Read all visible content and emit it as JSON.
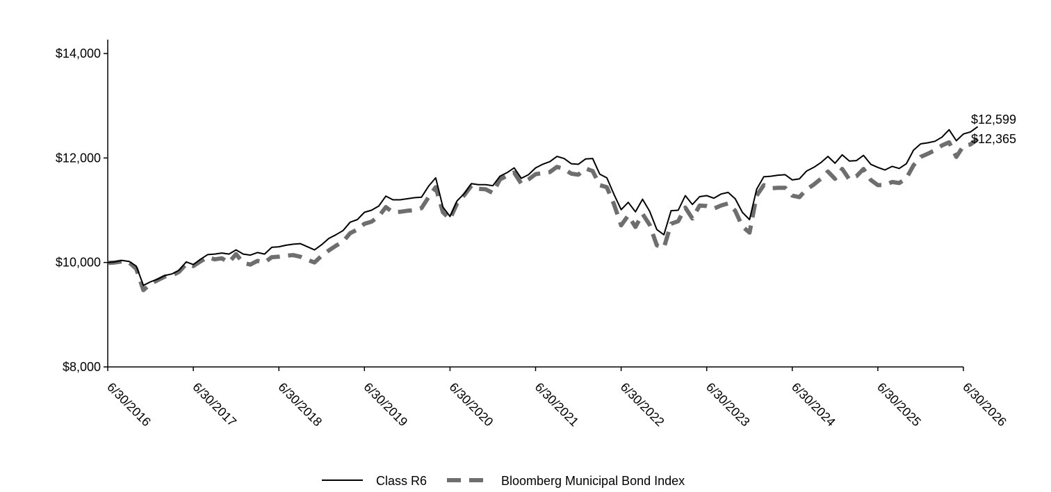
{
  "chart_data": {
    "type": "line",
    "title": "",
    "xlabel": "",
    "ylabel": "",
    "ylim": [
      8000,
      14000
    ],
    "y_ticks": [
      "$8,000",
      "$10,000",
      "$12,000",
      "$14,000"
    ],
    "y_tick_values": [
      8000,
      10000,
      12000,
      14000
    ],
    "x_ticks": [
      "6/30/2016",
      "6/30/2017",
      "6/30/2018",
      "6/30/2019",
      "6/30/2020",
      "6/30/2021",
      "6/30/2022",
      "6/30/2023",
      "6/30/2024",
      "6/30/2025",
      "6/30/2026"
    ],
    "x_range_years": [
      2016.5,
      2026.5
    ],
    "legend_position": "bottom",
    "series": [
      {
        "name": "Class R6",
        "color": "#000000",
        "style": "solid",
        "end_label": "$12,599",
        "points": [
          [
            2016.5,
            10000
          ],
          [
            2016.583,
            10010
          ],
          [
            2016.667,
            10040
          ],
          [
            2016.75,
            10020
          ],
          [
            2016.833,
            9930
          ],
          [
            2016.917,
            9560
          ],
          [
            2017.0,
            9630
          ],
          [
            2017.083,
            9680
          ],
          [
            2017.167,
            9750
          ],
          [
            2017.25,
            9780
          ],
          [
            2017.333,
            9850
          ],
          [
            2017.417,
            10010
          ],
          [
            2017.5,
            9960
          ],
          [
            2017.583,
            10060
          ],
          [
            2017.667,
            10150
          ],
          [
            2017.75,
            10160
          ],
          [
            2017.833,
            10180
          ],
          [
            2017.917,
            10160
          ],
          [
            2018.0,
            10240
          ],
          [
            2018.083,
            10160
          ],
          [
            2018.167,
            10140
          ],
          [
            2018.25,
            10190
          ],
          [
            2018.333,
            10160
          ],
          [
            2018.417,
            10290
          ],
          [
            2018.5,
            10300
          ],
          [
            2018.583,
            10330
          ],
          [
            2018.667,
            10350
          ],
          [
            2018.75,
            10360
          ],
          [
            2018.833,
            10300
          ],
          [
            2018.917,
            10240
          ],
          [
            2019.0,
            10340
          ],
          [
            2019.083,
            10460
          ],
          [
            2019.167,
            10530
          ],
          [
            2019.25,
            10610
          ],
          [
            2019.333,
            10770
          ],
          [
            2019.417,
            10820
          ],
          [
            2019.5,
            10960
          ],
          [
            2019.583,
            11000
          ],
          [
            2019.667,
            11080
          ],
          [
            2019.75,
            11270
          ],
          [
            2019.833,
            11200
          ],
          [
            2019.917,
            11200
          ],
          [
            2020.0,
            11220
          ],
          [
            2020.083,
            11240
          ],
          [
            2020.167,
            11250
          ],
          [
            2020.25,
            11460
          ],
          [
            2020.333,
            11620
          ],
          [
            2020.417,
            11060
          ],
          [
            2020.5,
            10880
          ],
          [
            2020.583,
            11180
          ],
          [
            2020.667,
            11320
          ],
          [
            2020.75,
            11510
          ],
          [
            2020.833,
            11490
          ],
          [
            2020.917,
            11490
          ],
          [
            2021.0,
            11470
          ],
          [
            2021.083,
            11650
          ],
          [
            2021.167,
            11720
          ],
          [
            2021.25,
            11810
          ],
          [
            2021.333,
            11610
          ],
          [
            2021.417,
            11680
          ],
          [
            2021.5,
            11810
          ],
          [
            2021.583,
            11880
          ],
          [
            2021.667,
            11930
          ],
          [
            2021.75,
            12030
          ],
          [
            2021.833,
            11990
          ],
          [
            2021.917,
            11890
          ],
          [
            2022.0,
            11880
          ],
          [
            2022.083,
            11980
          ],
          [
            2022.167,
            11990
          ],
          [
            2022.25,
            11690
          ],
          [
            2022.333,
            11620
          ],
          [
            2022.417,
            11300
          ],
          [
            2022.5,
            11010
          ],
          [
            2022.583,
            11150
          ],
          [
            2022.667,
            10970
          ],
          [
            2022.75,
            11210
          ],
          [
            2022.833,
            10980
          ],
          [
            2022.917,
            10630
          ],
          [
            2023.0,
            10530
          ],
          [
            2023.083,
            10990
          ],
          [
            2023.167,
            11000
          ],
          [
            2023.25,
            11280
          ],
          [
            2023.333,
            11110
          ],
          [
            2023.417,
            11260
          ],
          [
            2023.5,
            11280
          ],
          [
            2023.583,
            11230
          ],
          [
            2023.667,
            11310
          ],
          [
            2023.75,
            11340
          ],
          [
            2023.833,
            11220
          ],
          [
            2023.917,
            10960
          ],
          [
            2024.0,
            10820
          ],
          [
            2024.083,
            11400
          ],
          [
            2024.167,
            11640
          ],
          [
            2024.25,
            11650
          ],
          [
            2024.333,
            11670
          ],
          [
            2024.417,
            11680
          ],
          [
            2024.5,
            11580
          ],
          [
            2024.583,
            11600
          ],
          [
            2024.667,
            11750
          ],
          [
            2024.75,
            11820
          ],
          [
            2024.833,
            11910
          ],
          [
            2024.917,
            12030
          ],
          [
            2025.0,
            11900
          ],
          [
            2025.083,
            12060
          ],
          [
            2025.167,
            11940
          ],
          [
            2025.25,
            11950
          ],
          [
            2025.333,
            12050
          ],
          [
            2025.417,
            11880
          ],
          [
            2025.5,
            11820
          ],
          [
            2025.583,
            11770
          ],
          [
            2025.667,
            11840
          ],
          [
            2025.75,
            11800
          ],
          [
            2025.833,
            11890
          ],
          [
            2025.917,
            12150
          ],
          [
            2026.0,
            12270
          ],
          [
            2026.083,
            12290
          ],
          [
            2026.167,
            12320
          ],
          [
            2026.25,
            12400
          ],
          [
            2026.333,
            12540
          ],
          [
            2026.417,
            12330
          ],
          [
            2026.5,
            12460
          ],
          [
            2026.583,
            12500
          ],
          [
            2026.667,
            12599
          ]
        ]
      },
      {
        "name": "Bloomberg Municipal Bond Index",
        "color": "#6e6e6e",
        "style": "dashed",
        "end_label": "$12,365",
        "points": [
          [
            2016.5,
            9990
          ],
          [
            2016.583,
            10000
          ],
          [
            2016.667,
            10020
          ],
          [
            2016.75,
            10000
          ],
          [
            2016.833,
            9880
          ],
          [
            2016.917,
            9470
          ],
          [
            2017.0,
            9590
          ],
          [
            2017.083,
            9660
          ],
          [
            2017.167,
            9730
          ],
          [
            2017.25,
            9750
          ],
          [
            2017.333,
            9820
          ],
          [
            2017.417,
            9970
          ],
          [
            2017.5,
            9930
          ],
          [
            2017.583,
            10020
          ],
          [
            2017.667,
            10100
          ],
          [
            2017.75,
            10060
          ],
          [
            2017.833,
            10080
          ],
          [
            2017.917,
            10000
          ],
          [
            2018.0,
            10160
          ],
          [
            2018.083,
            9990
          ],
          [
            2018.167,
            9960
          ],
          [
            2018.25,
            10030
          ],
          [
            2018.333,
            10000
          ],
          [
            2018.417,
            10100
          ],
          [
            2018.5,
            10110
          ],
          [
            2018.583,
            10130
          ],
          [
            2018.667,
            10140
          ],
          [
            2018.75,
            10110
          ],
          [
            2018.833,
            10050
          ],
          [
            2018.917,
            10000
          ],
          [
            2019.0,
            10130
          ],
          [
            2019.083,
            10230
          ],
          [
            2019.167,
            10320
          ],
          [
            2019.25,
            10400
          ],
          [
            2019.333,
            10560
          ],
          [
            2019.417,
            10630
          ],
          [
            2019.5,
            10740
          ],
          [
            2019.583,
            10780
          ],
          [
            2019.667,
            10880
          ],
          [
            2019.75,
            11060
          ],
          [
            2019.833,
            10960
          ],
          [
            2019.917,
            10970
          ],
          [
            2020.0,
            10990
          ],
          [
            2020.083,
            11000
          ],
          [
            2020.167,
            11040
          ],
          [
            2020.25,
            11250
          ],
          [
            2020.333,
            11440
          ],
          [
            2020.417,
            10960
          ],
          [
            2020.5,
            10830
          ],
          [
            2020.583,
            11130
          ],
          [
            2020.667,
            11290
          ],
          [
            2020.75,
            11470
          ],
          [
            2020.833,
            11410
          ],
          [
            2020.917,
            11400
          ],
          [
            2021.0,
            11330
          ],
          [
            2021.083,
            11590
          ],
          [
            2021.167,
            11660
          ],
          [
            2021.25,
            11720
          ],
          [
            2021.333,
            11510
          ],
          [
            2021.417,
            11590
          ],
          [
            2021.5,
            11690
          ],
          [
            2021.583,
            11710
          ],
          [
            2021.667,
            11730
          ],
          [
            2021.75,
            11830
          ],
          [
            2021.833,
            11790
          ],
          [
            2021.917,
            11700
          ],
          [
            2022.0,
            11680
          ],
          [
            2022.083,
            11800
          ],
          [
            2022.167,
            11750
          ],
          [
            2022.25,
            11480
          ],
          [
            2022.333,
            11440
          ],
          [
            2022.417,
            11110
          ],
          [
            2022.5,
            10710
          ],
          [
            2022.583,
            10900
          ],
          [
            2022.667,
            10680
          ],
          [
            2022.75,
            10930
          ],
          [
            2022.833,
            10720
          ],
          [
            2022.917,
            10330
          ],
          [
            2023.0,
            10280
          ],
          [
            2023.083,
            10740
          ],
          [
            2023.167,
            10790
          ],
          [
            2023.25,
            11050
          ],
          [
            2023.333,
            10840
          ],
          [
            2023.417,
            11090
          ],
          [
            2023.5,
            11080
          ],
          [
            2023.583,
            11030
          ],
          [
            2023.667,
            11090
          ],
          [
            2023.75,
            11130
          ],
          [
            2023.833,
            10990
          ],
          [
            2023.917,
            10690
          ],
          [
            2024.0,
            10570
          ],
          [
            2024.083,
            11280
          ],
          [
            2024.167,
            11480
          ],
          [
            2024.25,
            11420
          ],
          [
            2024.333,
            11430
          ],
          [
            2024.417,
            11430
          ],
          [
            2024.5,
            11280
          ],
          [
            2024.583,
            11250
          ],
          [
            2024.667,
            11400
          ],
          [
            2024.75,
            11490
          ],
          [
            2024.833,
            11600
          ],
          [
            2024.917,
            11740
          ],
          [
            2025.0,
            11600
          ],
          [
            2025.083,
            11790
          ],
          [
            2025.167,
            11590
          ],
          [
            2025.25,
            11650
          ],
          [
            2025.333,
            11790
          ],
          [
            2025.417,
            11580
          ],
          [
            2025.5,
            11480
          ],
          [
            2025.583,
            11480
          ],
          [
            2025.667,
            11540
          ],
          [
            2025.75,
            11520
          ],
          [
            2025.833,
            11610
          ],
          [
            2025.917,
            11860
          ],
          [
            2026.0,
            12020
          ],
          [
            2026.083,
            12080
          ],
          [
            2026.167,
            12150
          ],
          [
            2026.25,
            12240
          ],
          [
            2026.333,
            12300
          ],
          [
            2026.417,
            12020
          ],
          [
            2026.5,
            12230
          ],
          [
            2026.583,
            12260
          ],
          [
            2026.667,
            12365
          ]
        ]
      }
    ]
  }
}
